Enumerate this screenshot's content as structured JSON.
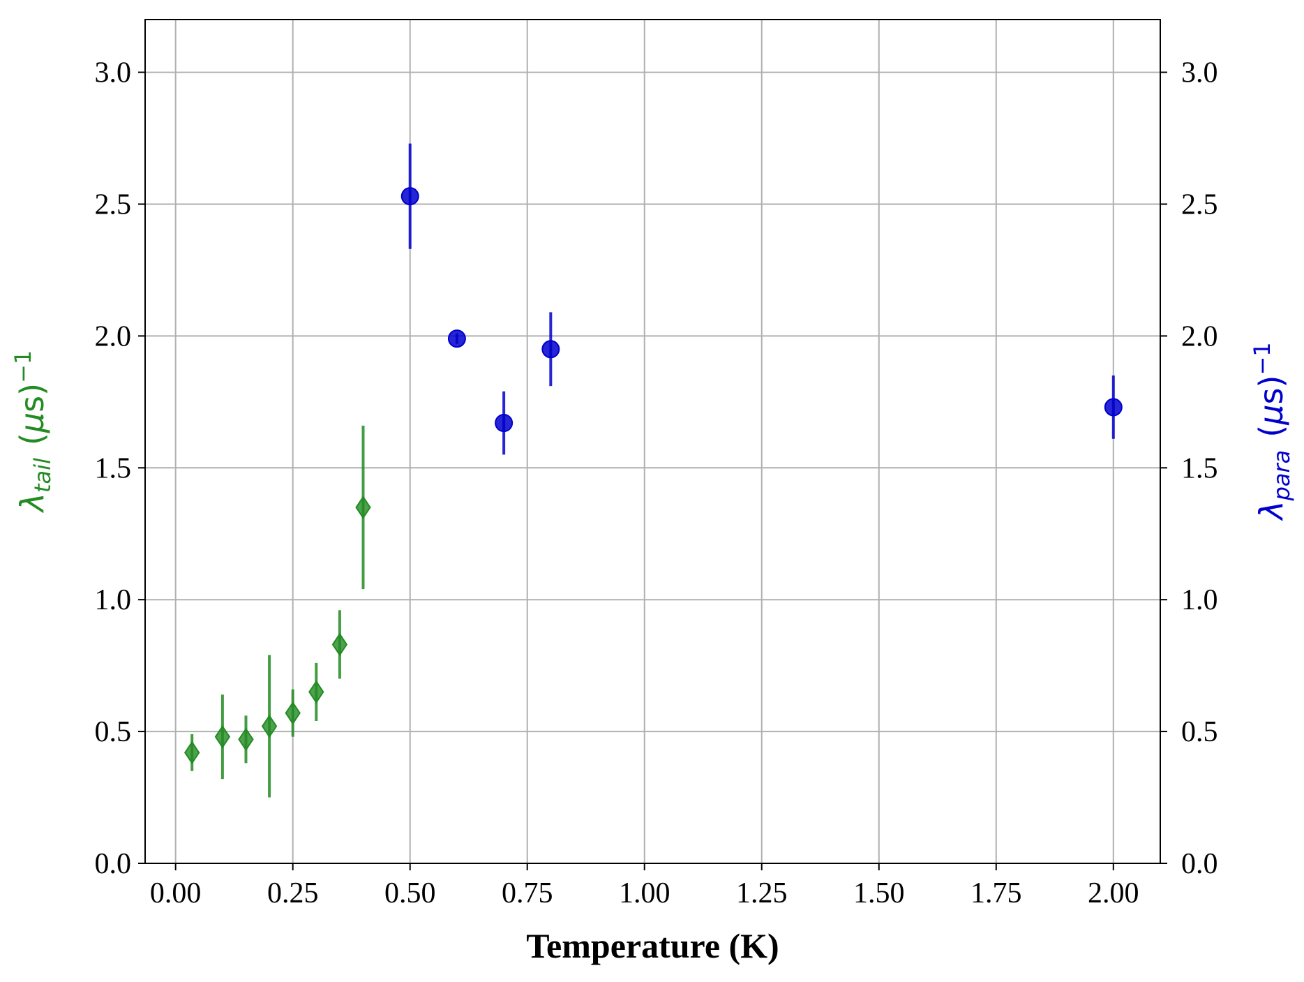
{
  "chart_data": {
    "type": "scatter",
    "xlabel": "Temperature (K)",
    "ylabel_left": {
      "symbol": "λ",
      "subscript": "tail",
      "unit_prefix": "(",
      "unit_mu": "μ",
      "unit_rest": "s)",
      "superscript": "−1"
    },
    "ylabel_right": {
      "symbol": "λ",
      "subscript": "para",
      "unit_prefix": "(",
      "unit_mu": "μ",
      "unit_rest": "s)",
      "superscript": "−1"
    },
    "xlim": [
      -0.065,
      2.1
    ],
    "ylim": [
      0.0,
      3.2
    ],
    "xticks": [
      0.0,
      0.25,
      0.5,
      0.75,
      1.0,
      1.25,
      1.5,
      1.75,
      2.0
    ],
    "xtick_labels": [
      "0.00",
      "0.25",
      "0.50",
      "0.75",
      "1.00",
      "1.25",
      "1.50",
      "1.75",
      "2.00"
    ],
    "yticks": [
      0.0,
      0.5,
      1.0,
      1.5,
      2.0,
      2.5,
      3.0
    ],
    "ytick_labels": [
      "0.0",
      "0.5",
      "1.0",
      "1.5",
      "2.0",
      "2.5",
      "3.0"
    ],
    "grid": true,
    "legend": "none",
    "series": [
      {
        "axis": "left",
        "marker": "diamond",
        "color": "#228B22",
        "points": [
          {
            "x": 0.035,
            "y": 0.42,
            "err": 0.07
          },
          {
            "x": 0.1,
            "y": 0.48,
            "err": 0.16
          },
          {
            "x": 0.15,
            "y": 0.47,
            "err": 0.09
          },
          {
            "x": 0.2,
            "y": 0.52,
            "err": 0.27
          },
          {
            "x": 0.25,
            "y": 0.57,
            "err": 0.09
          },
          {
            "x": 0.3,
            "y": 0.65,
            "err": 0.11
          },
          {
            "x": 0.35,
            "y": 0.83,
            "err": 0.13
          },
          {
            "x": 0.4,
            "y": 1.35,
            "err": 0.31
          }
        ]
      },
      {
        "axis": "right",
        "marker": "circle",
        "color": "#0000CD",
        "points": [
          {
            "x": 0.5,
            "y": 2.53,
            "err": 0.2
          },
          {
            "x": 0.6,
            "y": 1.99,
            "err": 0.02
          },
          {
            "x": 0.7,
            "y": 1.67,
            "err": 0.12
          },
          {
            "x": 0.8,
            "y": 1.95,
            "err": 0.14
          },
          {
            "x": 2.0,
            "y": 1.73,
            "err": 0.12
          }
        ]
      }
    ]
  }
}
